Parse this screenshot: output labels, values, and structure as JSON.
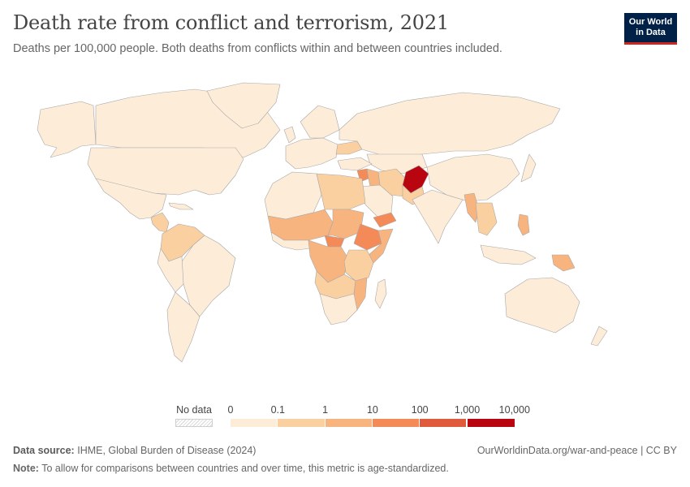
{
  "header": {
    "title": "Death rate from conflict and terrorism, 2021",
    "subtitle": "Deaths per 100,000 people. Both deaths from conflicts within and between countries included.",
    "logo_line1": "Our World",
    "logo_line2": "in Data"
  },
  "legend": {
    "no_data_label": "No data",
    "ticks": [
      "0",
      "0.1",
      "1",
      "10",
      "100",
      "1,000",
      "10,000"
    ],
    "bin_colors": [
      "#fdedd8",
      "#fbd0a0",
      "#f8b47e",
      "#f48a58",
      "#e05a3c",
      "#b8050f"
    ],
    "no_data_color": "#e6e6e6"
  },
  "colors": {
    "bin0": "#fdedd8",
    "bin1": "#fbd0a0",
    "bin2": "#f8b47e",
    "bin3": "#f48a58",
    "bin4": "#e05a3c",
    "bin5": "#b8050f"
  },
  "footer": {
    "source_label": "Data source:",
    "source_text": "IHME, Global Burden of Disease (2024)",
    "url_text": "OurWorldinData.org/war-and-peace | CC BY",
    "note_label": "Note:",
    "note_text": "To allow for comparisons between countries and over time, this metric is age-standardized."
  }
}
